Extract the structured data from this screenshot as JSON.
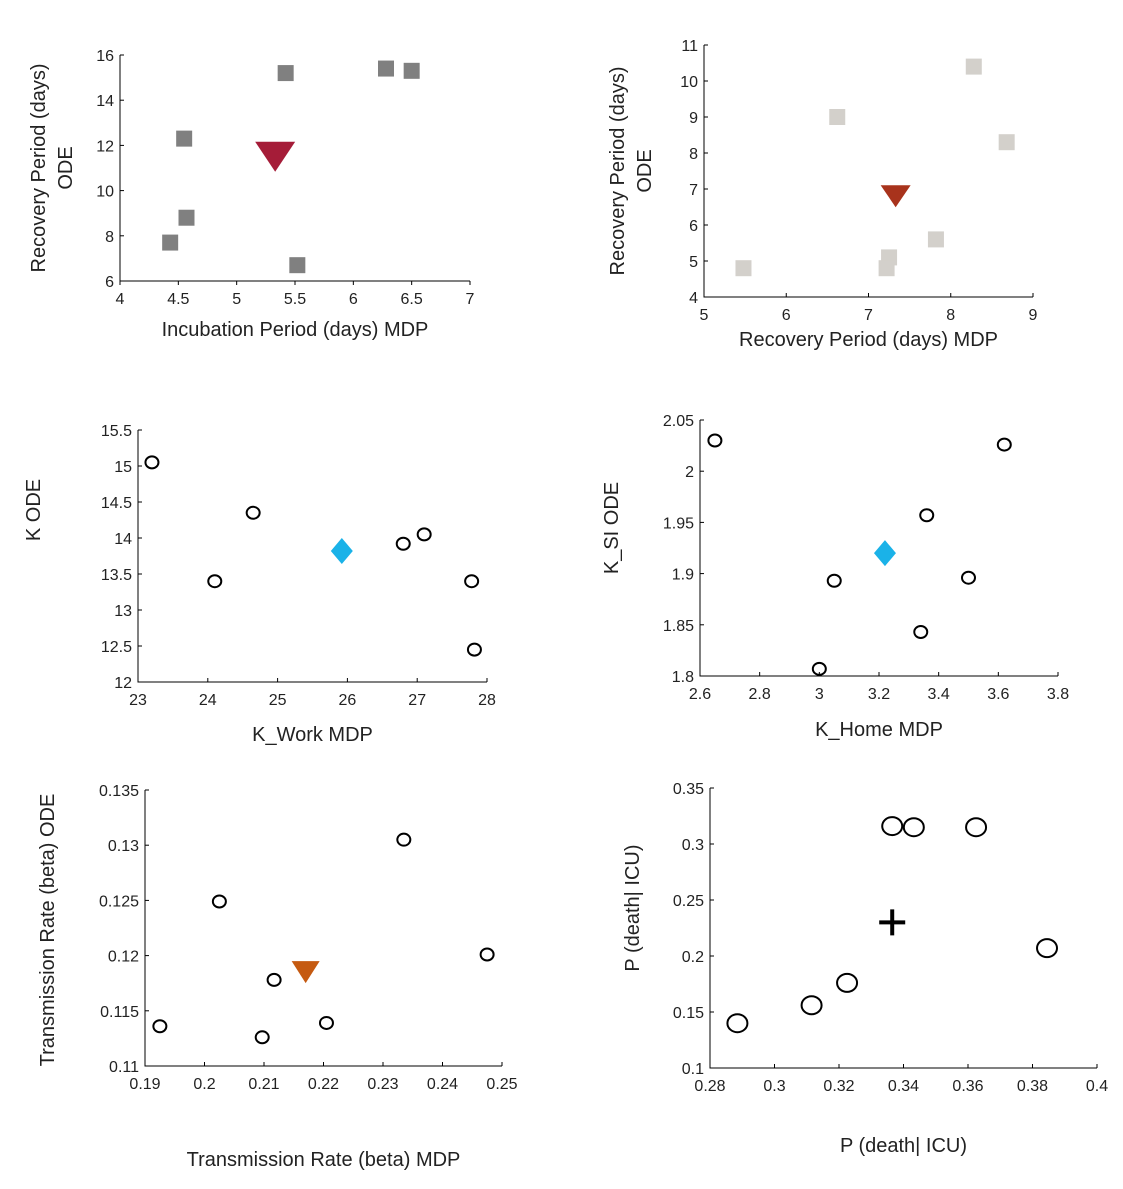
{
  "chart_data": [
    {
      "type": "scatter",
      "xlabel": "Incubation Period (days) MDP",
      "ylabel": [
        "Recovery Period (days)",
        "ODE"
      ],
      "xlim": [
        4,
        7
      ],
      "ylim": [
        6,
        16
      ],
      "xticks": [
        4,
        4.5,
        5,
        5.5,
        6,
        6.5,
        7
      ],
      "yticks": [
        6,
        8,
        10,
        12,
        14,
        16
      ],
      "marker_style": "square",
      "marker_color": "#808080",
      "points": [
        {
          "x": 4.43,
          "y": 7.7
        },
        {
          "x": 4.55,
          "y": 12.3
        },
        {
          "x": 4.57,
          "y": 8.8
        },
        {
          "x": 5.42,
          "y": 15.2
        },
        {
          "x": 5.52,
          "y": 6.7
        },
        {
          "x": 6.28,
          "y": 15.4
        },
        {
          "x": 6.5,
          "y": 15.3
        }
      ],
      "highlight": {
        "x": 5.33,
        "y": 11.5,
        "marker": "triangle-down",
        "color": "#A51C38"
      }
    },
    {
      "type": "scatter",
      "xlabel": "Recovery Period (days) MDP",
      "ylabel": [
        "Recovery Period (days)",
        "ODE"
      ],
      "xlim": [
        5,
        9
      ],
      "ylim": [
        4,
        11
      ],
      "xticks": [
        5,
        6,
        7,
        8,
        9
      ],
      "yticks": [
        4,
        5,
        6,
        7,
        8,
        9,
        10,
        11
      ],
      "marker_style": "square",
      "marker_color": "#D3D0CB",
      "points": [
        {
          "x": 5.48,
          "y": 4.8
        },
        {
          "x": 6.62,
          "y": 9.0
        },
        {
          "x": 7.25,
          "y": 5.1
        },
        {
          "x": 7.22,
          "y": 4.8
        },
        {
          "x": 7.82,
          "y": 5.6
        },
        {
          "x": 8.28,
          "y": 10.4
        },
        {
          "x": 8.68,
          "y": 8.3
        }
      ],
      "highlight": {
        "x": 7.33,
        "y": 6.8,
        "marker": "triangle-down",
        "color": "#A8331C"
      }
    },
    {
      "type": "scatter",
      "xlabel": "K_Work MDP",
      "ylabel": [
        "K   ODE"
      ],
      "xlim": [
        23,
        28
      ],
      "ylim": [
        12,
        15.5
      ],
      "xticks": [
        23,
        24,
        25,
        26,
        27,
        28
      ],
      "yticks": [
        12,
        12.5,
        13,
        13.5,
        14,
        14.5,
        15,
        15.5
      ],
      "marker_style": "circle",
      "marker_color": "#000000",
      "points": [
        {
          "x": 23.2,
          "y": 15.05
        },
        {
          "x": 24.1,
          "y": 13.4
        },
        {
          "x": 24.65,
          "y": 14.35
        },
        {
          "x": 26.8,
          "y": 13.92
        },
        {
          "x": 27.1,
          "y": 14.05
        },
        {
          "x": 27.78,
          "y": 13.4
        },
        {
          "x": 27.82,
          "y": 12.45
        }
      ],
      "highlight": {
        "x": 25.92,
        "y": 13.82,
        "marker": "diamond",
        "color": "#1AB2E8"
      }
    },
    {
      "type": "scatter",
      "xlabel": "K_Home MDP",
      "ylabel": [
        "K_SI  ODE"
      ],
      "xlim": [
        2.6,
        3.8
      ],
      "ylim": [
        1.8,
        2.05
      ],
      "xticks": [
        2.6,
        2.8,
        3,
        3.2,
        3.4,
        3.6,
        3.8
      ],
      "yticks": [
        1.8,
        1.85,
        1.9,
        1.95,
        2,
        2.05
      ],
      "marker_style": "circle",
      "marker_color": "#000000",
      "points": [
        {
          "x": 2.65,
          "y": 2.03
        },
        {
          "x": 3.0,
          "y": 1.807
        },
        {
          "x": 3.05,
          "y": 1.893
        },
        {
          "x": 3.34,
          "y": 1.843
        },
        {
          "x": 3.36,
          "y": 1.957
        },
        {
          "x": 3.5,
          "y": 1.896
        },
        {
          "x": 3.62,
          "y": 2.026
        }
      ],
      "highlight": {
        "x": 3.22,
        "y": 1.92,
        "marker": "diamond",
        "color": "#1AB2E8"
      }
    },
    {
      "type": "scatter",
      "xlabel": "Transmission Rate (beta) MDP",
      "ylabel": [
        "Transmission Rate (beta) ODE"
      ],
      "xlim": [
        0.19,
        0.25
      ],
      "ylim": [
        0.11,
        0.135
      ],
      "xticks": [
        0.19,
        0.2,
        0.21,
        0.22,
        0.23,
        0.24,
        0.25
      ],
      "yticks": [
        0.11,
        0.115,
        0.12,
        0.125,
        0.13,
        0.135
      ],
      "marker_style": "circle",
      "marker_color": "#000000",
      "points": [
        {
          "x": 0.1925,
          "y": 0.1136
        },
        {
          "x": 0.2025,
          "y": 0.1249
        },
        {
          "x": 0.2097,
          "y": 0.1126
        },
        {
          "x": 0.2117,
          "y": 0.1178
        },
        {
          "x": 0.2205,
          "y": 0.1139
        },
        {
          "x": 0.2335,
          "y": 0.1305
        },
        {
          "x": 0.2475,
          "y": 0.1201
        }
      ],
      "highlight": {
        "x": 0.217,
        "y": 0.1185,
        "marker": "triangle-down",
        "color": "#C55A11"
      }
    },
    {
      "type": "scatter",
      "xlabel": "P (death| ICU)",
      "ylabel": [
        "P (death| ICU)"
      ],
      "xlim": [
        0.28,
        0.4
      ],
      "ylim": [
        0.1,
        0.35
      ],
      "xticks": [
        0.28,
        0.3,
        0.32,
        0.34,
        0.36,
        0.38,
        0.4
      ],
      "yticks": [
        0.1,
        0.15,
        0.2,
        0.25,
        0.3,
        0.35
      ],
      "marker_style": "circle-large",
      "marker_color": "#000000",
      "points": [
        {
          "x": 0.2885,
          "y": 0.14
        },
        {
          "x": 0.3115,
          "y": 0.156
        },
        {
          "x": 0.3225,
          "y": 0.176
        },
        {
          "x": 0.3365,
          "y": 0.316
        },
        {
          "x": 0.3432,
          "y": 0.315
        },
        {
          "x": 0.3625,
          "y": 0.315
        },
        {
          "x": 0.3845,
          "y": 0.207
        }
      ],
      "highlight": {
        "x": 0.3365,
        "y": 0.23,
        "marker": "plus",
        "color": "#000000"
      }
    }
  ]
}
